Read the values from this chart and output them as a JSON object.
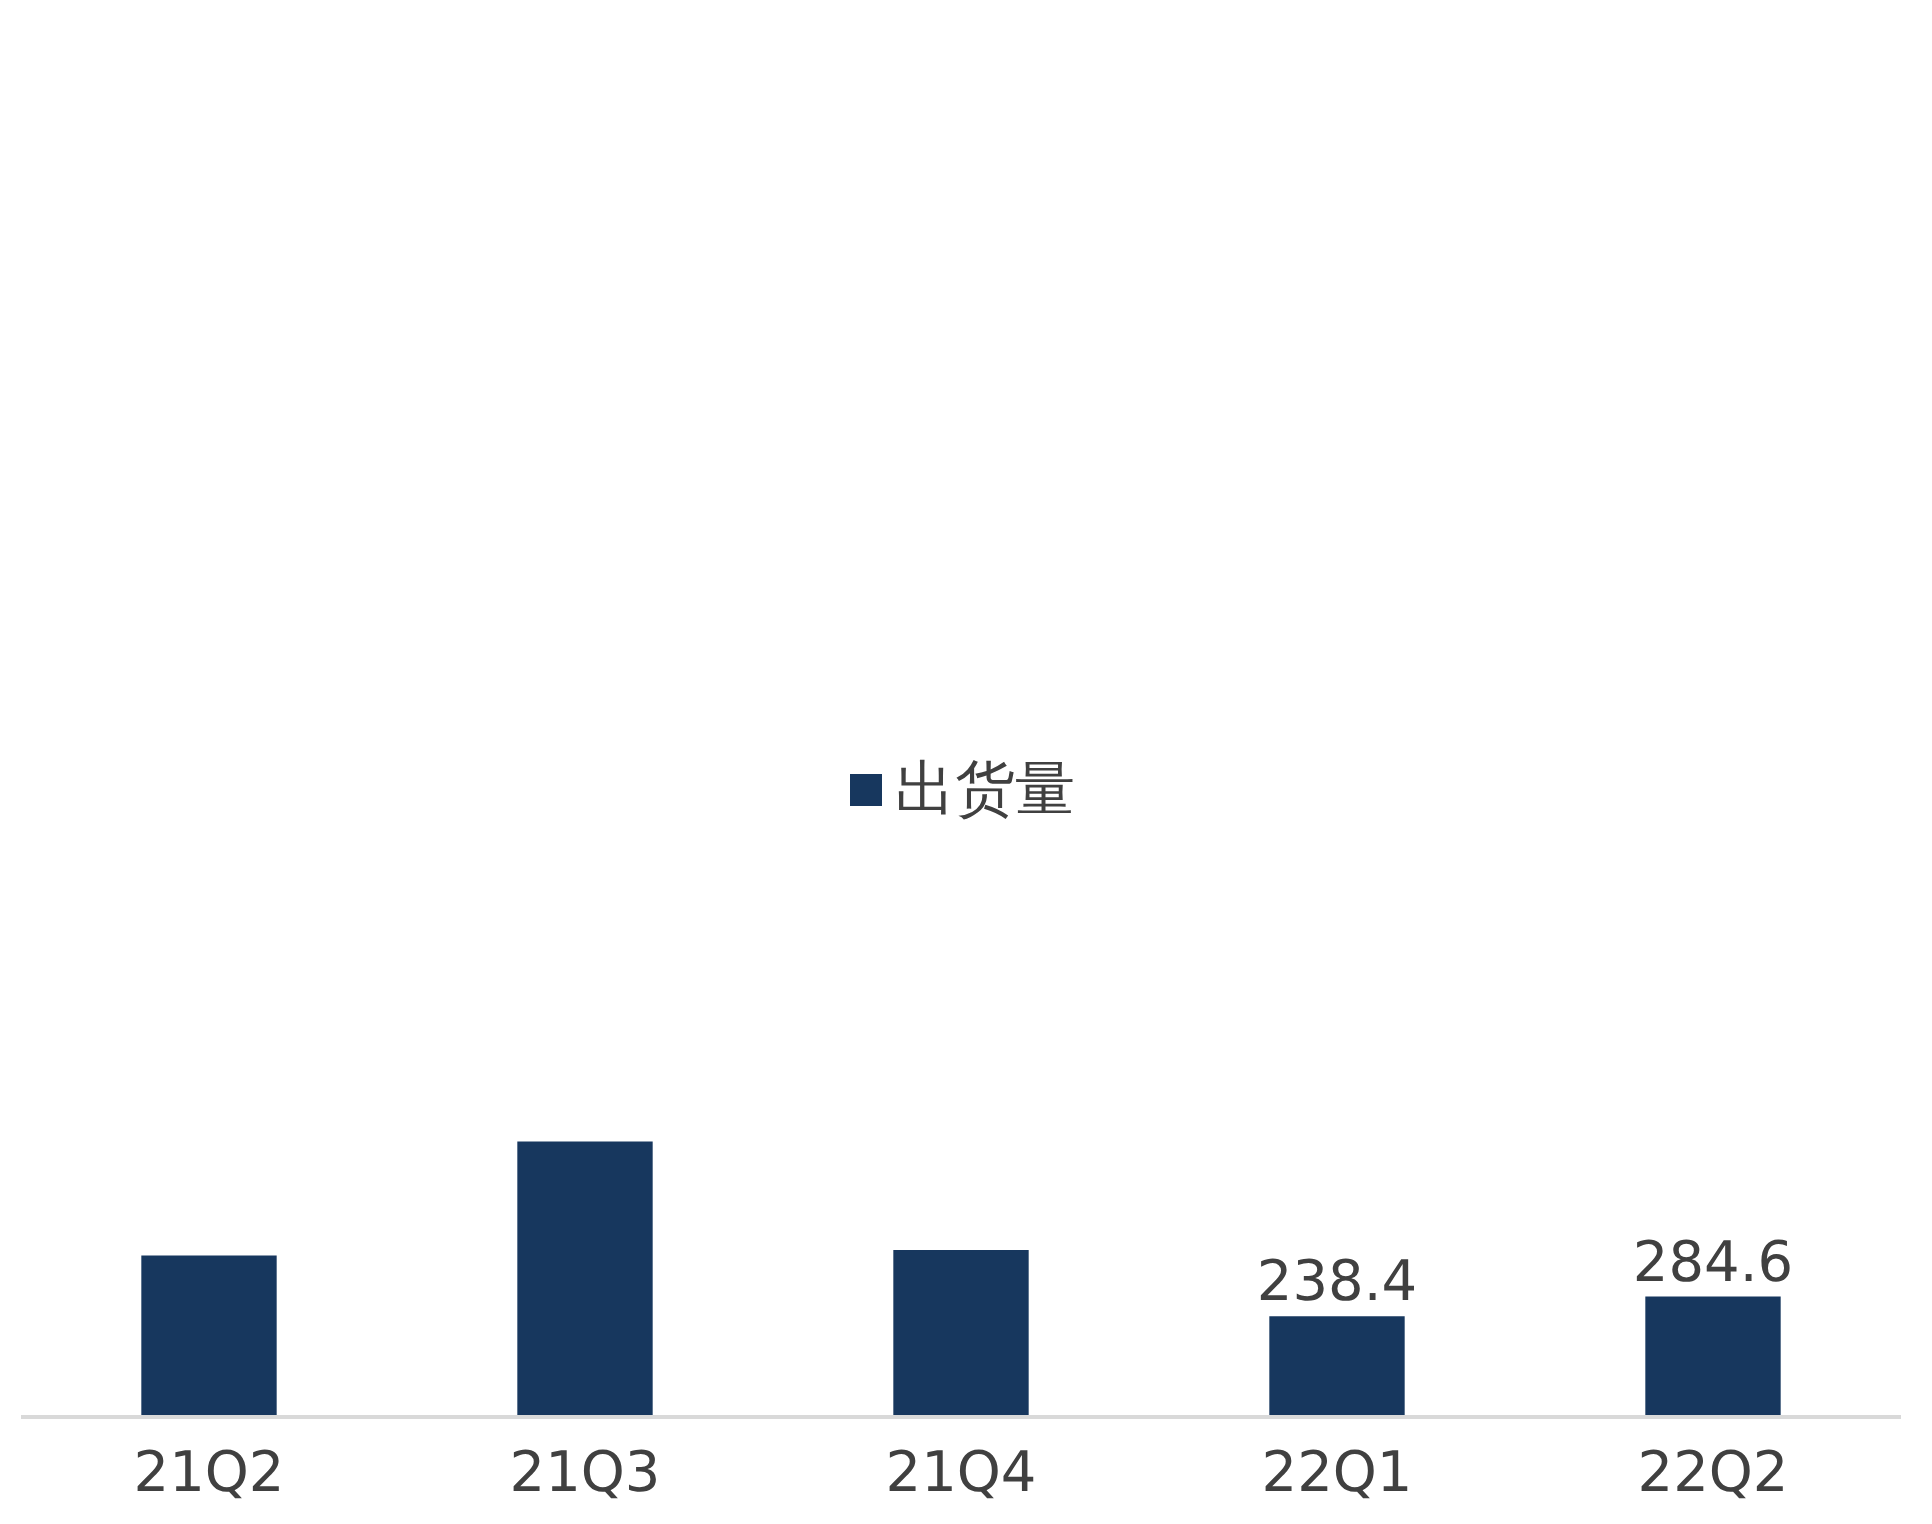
{
  "chart_data": {
    "type": "bar",
    "categories": [
      "21Q2",
      "21Q3",
      "21Q4",
      "22Q1",
      "22Q2"
    ],
    "series": [
      {
        "name": "出货量",
        "color": "#17375e",
        "values": [
          382,
          651,
          395,
          238.4,
          284.6
        ],
        "value_labels": [
          null,
          null,
          null,
          "238.4",
          "284.6"
        ]
      }
    ],
    "legend": "top",
    "grid": false
  }
}
